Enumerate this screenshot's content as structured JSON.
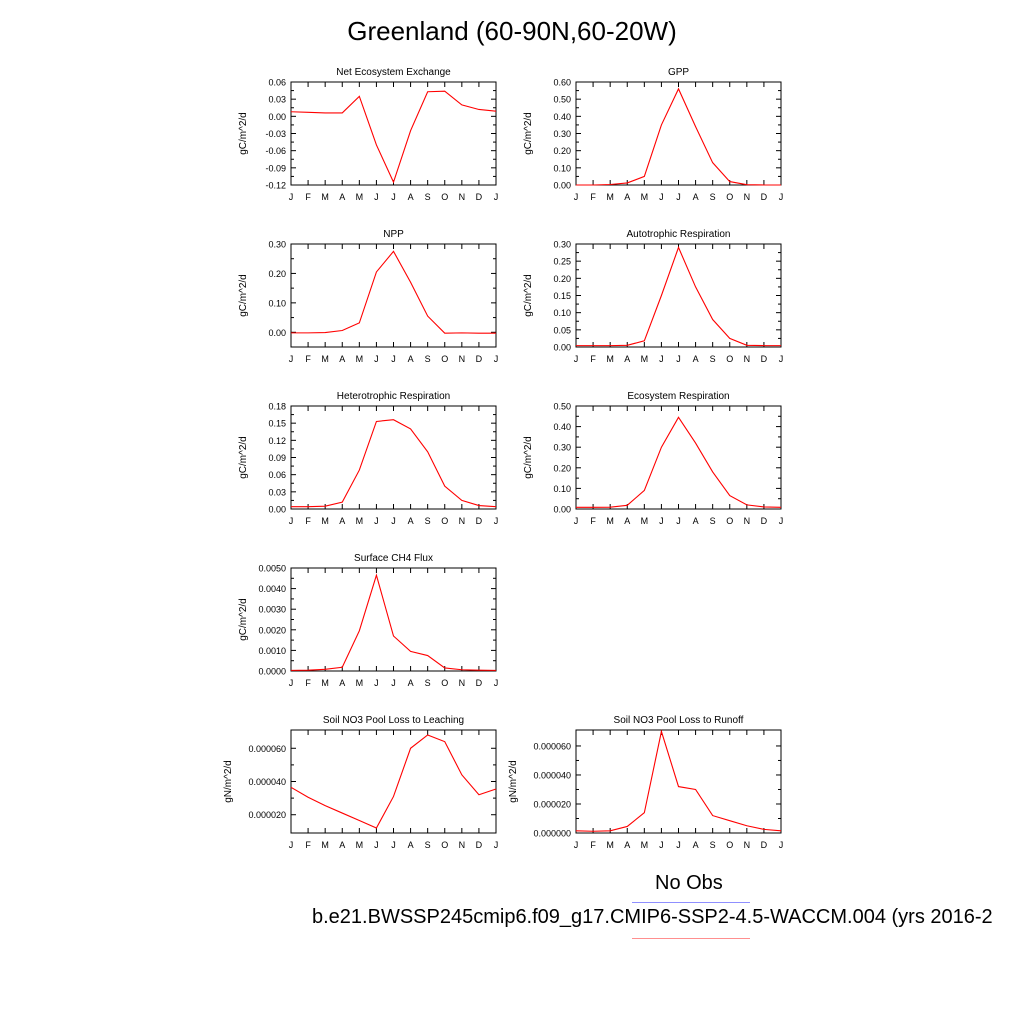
{
  "title": "Greenland (60-90N,60-20W)",
  "legend": {
    "obs_label": "No Obs",
    "obs_color": "#8f8fff",
    "case_label": "b.e21.BWSSP245cmip6.f09_g17.CMIP6-SSP2-4.5-WACCM.004 (yrs 2016-2",
    "case_color": "#ff8f8f"
  },
  "chart_data": [
    {
      "type": "line",
      "title": "Net Ecosystem Exchange",
      "ylabel": "gC/m^2/d",
      "x": [
        "J",
        "F",
        "M",
        "A",
        "M",
        "J",
        "J",
        "A",
        "S",
        "O",
        "N",
        "D",
        "J"
      ],
      "ylim": [
        -0.12,
        0.06
      ],
      "yticks": [
        "0.06",
        "0.03",
        "0.00",
        "-0.03",
        "-0.06",
        "-0.09",
        "-0.12"
      ],
      "tickvals": [
        0.06,
        0.03,
        0.0,
        -0.03,
        -0.06,
        -0.09,
        -0.12
      ],
      "color": "#ff0000",
      "values": [
        0.008,
        0.007,
        0.006,
        0.006,
        0.035,
        -0.05,
        -0.115,
        -0.025,
        0.043,
        0.044,
        0.02,
        0.012,
        0.009
      ]
    },
    {
      "type": "line",
      "title": "GPP",
      "ylabel": "gC/m^2/d",
      "x": [
        "J",
        "F",
        "M",
        "A",
        "M",
        "J",
        "J",
        "A",
        "S",
        "O",
        "N",
        "D",
        "J"
      ],
      "ylim": [
        0.0,
        0.6
      ],
      "yticks": [
        "0.60",
        "0.50",
        "0.40",
        "0.30",
        "0.20",
        "0.10",
        "0.00"
      ],
      "tickvals": [
        0.6,
        0.5,
        0.4,
        0.3,
        0.2,
        0.1,
        0.0
      ],
      "color": "#ff0000",
      "values": [
        0.0,
        0.0,
        0.003,
        0.012,
        0.05,
        0.35,
        0.56,
        0.34,
        0.13,
        0.02,
        0.002,
        0.0,
        0.0
      ]
    },
    {
      "type": "line",
      "title": "NPP",
      "ylabel": "gC/m^2/d",
      "x": [
        "J",
        "F",
        "M",
        "A",
        "M",
        "J",
        "J",
        "A",
        "S",
        "O",
        "N",
        "D",
        "J"
      ],
      "ylim": [
        -0.05,
        0.3
      ],
      "yticks": [
        "0.30",
        "0.20",
        "0.10",
        "0.00"
      ],
      "tickvals": [
        0.3,
        0.2,
        0.1,
        0.0
      ],
      "color": "#ff0000",
      "values": [
        -0.002,
        -0.002,
        -0.001,
        0.006,
        0.032,
        0.205,
        0.275,
        0.17,
        0.055,
        -0.003,
        -0.002,
        -0.003,
        -0.003
      ]
    },
    {
      "type": "line",
      "title": "Autotrophic Respiration",
      "ylabel": "gC/m^2/d",
      "x": [
        "J",
        "F",
        "M",
        "A",
        "M",
        "J",
        "J",
        "A",
        "S",
        "O",
        "N",
        "D",
        "J"
      ],
      "ylim": [
        0.0,
        0.3
      ],
      "yticks": [
        "0.30",
        "0.25",
        "0.20",
        "0.15",
        "0.10",
        "0.05",
        "0.00"
      ],
      "tickvals": [
        0.3,
        0.25,
        0.2,
        0.15,
        0.1,
        0.05,
        0.0
      ],
      "color": "#ff0000",
      "values": [
        0.004,
        0.004,
        0.004,
        0.005,
        0.018,
        0.15,
        0.29,
        0.175,
        0.08,
        0.025,
        0.005,
        0.004,
        0.004
      ]
    },
    {
      "type": "line",
      "title": "Heterotrophic Respiration",
      "ylabel": "gC/m^2/d",
      "x": [
        "J",
        "F",
        "M",
        "A",
        "M",
        "J",
        "J",
        "A",
        "S",
        "O",
        "N",
        "D",
        "J"
      ],
      "ylim": [
        0.0,
        0.18
      ],
      "yticks": [
        "0.18",
        "0.15",
        "0.12",
        "0.09",
        "0.06",
        "0.03",
        "0.00"
      ],
      "tickvals": [
        0.18,
        0.15,
        0.12,
        0.09,
        0.06,
        0.03,
        0.0
      ],
      "color": "#ff0000",
      "values": [
        0.004,
        0.004,
        0.005,
        0.012,
        0.068,
        0.153,
        0.156,
        0.14,
        0.1,
        0.04,
        0.015,
        0.006,
        0.004
      ]
    },
    {
      "type": "line",
      "title": "Ecosystem Respiration",
      "ylabel": "gC/m^2/d",
      "x": [
        "J",
        "F",
        "M",
        "A",
        "M",
        "J",
        "J",
        "A",
        "S",
        "O",
        "N",
        "D",
        "J"
      ],
      "ylim": [
        0.0,
        0.5
      ],
      "yticks": [
        "0.50",
        "0.40",
        "0.30",
        "0.20",
        "0.10",
        "0.00"
      ],
      "tickvals": [
        0.5,
        0.4,
        0.3,
        0.2,
        0.1,
        0.0
      ],
      "color": "#ff0000",
      "values": [
        0.008,
        0.008,
        0.009,
        0.018,
        0.09,
        0.3,
        0.445,
        0.32,
        0.18,
        0.065,
        0.02,
        0.01,
        0.008
      ]
    },
    {
      "type": "line",
      "title": "Surface CH4 Flux",
      "ylabel": "gC/m^2/d",
      "x": [
        "J",
        "F",
        "M",
        "A",
        "M",
        "J",
        "J",
        "A",
        "S",
        "O",
        "N",
        "D",
        "J"
      ],
      "ylim": [
        0.0,
        0.005
      ],
      "yticks": [
        "0.0050",
        "0.0040",
        "0.0030",
        "0.0020",
        "0.0010",
        "0.0000"
      ],
      "tickvals": [
        0.005,
        0.004,
        0.003,
        0.002,
        0.001,
        0.0
      ],
      "color": "#ff0000",
      "values": [
        3e-05,
        4e-05,
        8e-05,
        0.00018,
        0.00195,
        0.00465,
        0.0017,
        0.00095,
        0.00075,
        0.00015,
        6e-05,
        4e-05,
        3e-05
      ]
    },
    {
      "type": "line",
      "title": "Soil NO3 Pool Loss to Leaching",
      "ylabel": "gN/m^2/d",
      "x": [
        "J",
        "F",
        "M",
        "A",
        "M",
        "J",
        "J",
        "A",
        "S",
        "O",
        "N",
        "D",
        "J"
      ],
      "ylim": [
        9e-06,
        7.1e-05
      ],
      "yticks": [
        "0.000060",
        "0.000040",
        "0.000020"
      ],
      "tickvals": [
        6e-05,
        4e-05,
        2e-05
      ],
      "color": "#ff0000",
      "values": [
        3.65e-05,
        3.05e-05,
        2.55e-05,
        2.1e-05,
        1.65e-05,
        1.2e-05,
        3.1e-05,
        6e-05,
        6.8e-05,
        6.4e-05,
        4.4e-05,
        3.2e-05,
        3.55e-05
      ]
    },
    {
      "type": "line",
      "title": "Soil NO3 Pool Loss to Runoff",
      "ylabel": "gN/m^2/d",
      "x": [
        "J",
        "F",
        "M",
        "A",
        "M",
        "J",
        "J",
        "A",
        "S",
        "O",
        "N",
        "D",
        "J"
      ],
      "ylim": [
        0.0,
        7.1e-05
      ],
      "yticks": [
        "0.000060",
        "0.000040",
        "0.000020",
        "0.000000"
      ],
      "tickvals": [
        6e-05,
        4e-05,
        2e-05,
        0.0
      ],
      "color": "#ff0000",
      "values": [
        1.5e-06,
        1.2e-06,
        1.5e-06,
        4.5e-06,
        1.4e-05,
        7e-05,
        3.2e-05,
        3e-05,
        1.2e-05,
        8.5e-06,
        5e-06,
        2.5e-06,
        1.5e-06
      ]
    }
  ]
}
